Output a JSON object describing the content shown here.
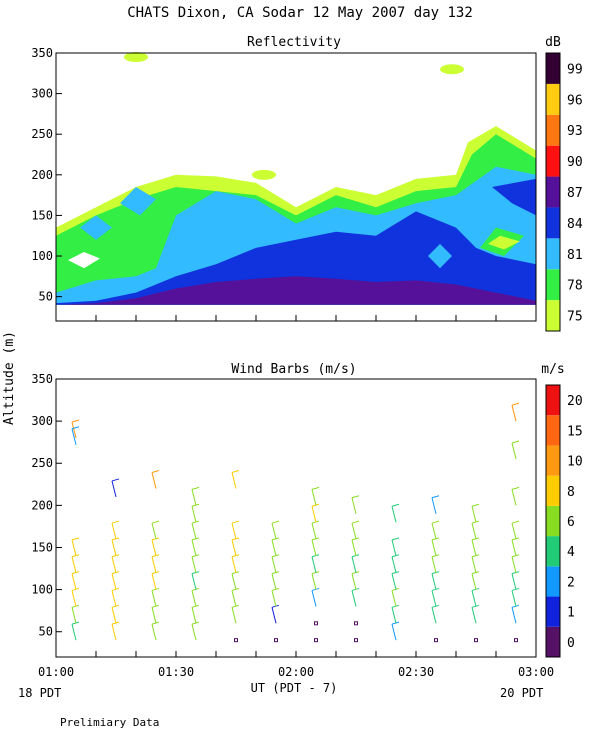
{
  "title": "CHATS Dixon, CA  Sodar  12 May 2007  day 132",
  "ylabel": "Altitude (m)",
  "footer": {
    "xlabel": "UT  (PDT - 7)",
    "left_note": "18 PDT",
    "right_note": "20 PDT",
    "preliminary": "Prelimiary Data"
  },
  "chart_data": [
    {
      "type": "heatmap",
      "title": "Reflectivity",
      "ylim": [
        20,
        350
      ],
      "yticks": [
        "50",
        "100",
        "150",
        "200",
        "250",
        "300",
        "350"
      ],
      "xlim": [
        "01:00",
        "03:00"
      ],
      "xticks": [],
      "colorbar": {
        "unit": "dB",
        "labels": [
          "75",
          "78",
          "81",
          "84",
          "87",
          "90",
          "93",
          "96",
          "99"
        ],
        "colors": [
          "#ccff33",
          "#33ee44",
          "#33bbff",
          "#1133dd",
          "#551199",
          "#ff1111",
          "#ff7711",
          "#ffcc11",
          "#330033"
        ]
      },
      "bands": [
        {
          "level": "75",
          "color": "#ccff33",
          "top": [
            [
              "01:00",
              135
            ],
            [
              "01:10",
              160
            ],
            [
              "01:20",
              185
            ],
            [
              "01:30",
              200
            ],
            [
              "01:40",
              198
            ],
            [
              "01:50",
              190
            ],
            [
              "02:00",
              160
            ],
            [
              "02:10",
              185
            ],
            [
              "02:20",
              175
            ],
            [
              "02:30",
              195
            ],
            [
              "02:40",
              200
            ],
            [
              "02:43",
              240
            ],
            [
              "02:50",
              260
            ],
            [
              "03:00",
              230
            ]
          ]
        },
        {
          "level": "78",
          "color": "#33ee44",
          "top": [
            [
              "01:00",
              125
            ],
            [
              "01:10",
              150
            ],
            [
              "01:20",
              170
            ],
            [
              "01:30",
              185
            ],
            [
              "01:40",
              180
            ],
            [
              "01:50",
              175
            ],
            [
              "02:00",
              150
            ],
            [
              "02:10",
              175
            ],
            [
              "02:20",
              160
            ],
            [
              "02:30",
              180
            ],
            [
              "02:40",
              185
            ],
            [
              "02:44",
              225
            ],
            [
              "02:50",
              250
            ],
            [
              "03:00",
              220
            ]
          ]
        },
        {
          "level": "81",
          "color": "#33bbff",
          "top": [
            [
              "01:00",
              55
            ],
            [
              "01:10",
              70
            ],
            [
              "01:20",
              75
            ],
            [
              "01:25",
              85
            ],
            [
              "01:30",
              150
            ],
            [
              "01:40",
              180
            ],
            [
              "01:50",
              170
            ],
            [
              "02:00",
              140
            ],
            [
              "02:10",
              160
            ],
            [
              "02:20",
              150
            ],
            [
              "02:30",
              165
            ],
            [
              "02:40",
              175
            ],
            [
              "02:50",
              210
            ],
            [
              "03:00",
              200
            ]
          ]
        },
        {
          "level": "84",
          "color": "#1133dd",
          "top": [
            [
              "01:00",
              42
            ],
            [
              "01:10",
              45
            ],
            [
              "01:20",
              55
            ],
            [
              "01:30",
              75
            ],
            [
              "01:40",
              90
            ],
            [
              "01:50",
              110
            ],
            [
              "02:00",
              120
            ],
            [
              "02:10",
              130
            ],
            [
              "02:20",
              125
            ],
            [
              "02:30",
              155
            ],
            [
              "02:40",
              135
            ],
            [
              "02:45",
              110
            ],
            [
              "02:50",
              100
            ],
            [
              "03:00",
              90
            ]
          ]
        },
        {
          "level": "87",
          "color": "#551199",
          "top": [
            [
              "01:00",
              40
            ],
            [
              "01:10",
              42
            ],
            [
              "01:20",
              48
            ],
            [
              "01:30",
              60
            ],
            [
              "01:40",
              68
            ],
            [
              "01:50",
              72
            ],
            [
              "02:00",
              75
            ],
            [
              "02:10",
              72
            ],
            [
              "02:20",
              68
            ],
            [
              "02:30",
              70
            ],
            [
              "02:40",
              65
            ],
            [
              "02:50",
              55
            ],
            [
              "03:00",
              45
            ]
          ]
        }
      ],
      "annotations": [
        {
          "label": "75",
          "at": [
            "01:20",
            345
          ]
        },
        {
          "label": "75",
          "at": [
            "02:39",
            330
          ]
        },
        {
          "label": "75",
          "at": [
            "01:52",
            200
          ]
        }
      ]
    },
    {
      "type": "scatter",
      "title": "Wind Barbs (m/s)",
      "ylim": [
        20,
        350
      ],
      "yticks": [
        "50",
        "100",
        "150",
        "200",
        "250",
        "300",
        "350"
      ],
      "xlim": [
        "01:00",
        "03:00"
      ],
      "xticks": [
        "01:00",
        "01:30",
        "02:00",
        "02:30",
        "03:00"
      ],
      "colorbar": {
        "unit": "m/s",
        "labels": [
          "0",
          "1",
          "2",
          "4",
          "6",
          "8",
          "10",
          "15",
          "20"
        ],
        "colors": [
          "#551166",
          "#1122dd",
          "#1199ff",
          "#22cc77",
          "#88dd22",
          "#ffcc00",
          "#ff9911",
          "#ff6611",
          "#ee1111"
        ]
      },
      "profiles": [
        {
          "time": "01:05",
          "points": [
            [
              40,
              "#22cc77"
            ],
            [
              60,
              "#88dd22"
            ],
            [
              80,
              "#ffcc00"
            ],
            [
              100,
              "#ffcc00"
            ],
            [
              120,
              "#ffcc00"
            ],
            [
              140,
              "#ffcc00"
            ],
            [
              280,
              "#ff9911"
            ],
            [
              272,
              "#1199ff"
            ]
          ]
        },
        {
          "time": "01:15",
          "points": [
            [
              40,
              "#ffcc00"
            ],
            [
              60,
              "#ffcc00"
            ],
            [
              80,
              "#ffcc00"
            ],
            [
              100,
              "#ffcc00"
            ],
            [
              120,
              "#ffcc00"
            ],
            [
              140,
              "#ffcc00"
            ],
            [
              160,
              "#ffcc00"
            ],
            [
              210,
              "#1122dd"
            ]
          ]
        },
        {
          "time": "01:25",
          "points": [
            [
              40,
              "#88dd22"
            ],
            [
              60,
              "#88dd22"
            ],
            [
              80,
              "#88dd22"
            ],
            [
              100,
              "#ffcc00"
            ],
            [
              120,
              "#ffcc00"
            ],
            [
              140,
              "#ffcc00"
            ],
            [
              160,
              "#88dd22"
            ],
            [
              220,
              "#ff9911"
            ]
          ]
        },
        {
          "time": "01:35",
          "points": [
            [
              40,
              "#88dd22"
            ],
            [
              60,
              "#88dd22"
            ],
            [
              80,
              "#88dd22"
            ],
            [
              100,
              "#22cc77"
            ],
            [
              120,
              "#88dd22"
            ],
            [
              140,
              "#88dd22"
            ],
            [
              160,
              "#88dd22"
            ],
            [
              180,
              "#88dd22"
            ],
            [
              200,
              "#88dd22"
            ]
          ]
        },
        {
          "time": "01:45",
          "points": [
            [
              40,
              "#551166"
            ],
            [
              60,
              "#88dd22"
            ],
            [
              80,
              "#88dd22"
            ],
            [
              100,
              "#88dd22"
            ],
            [
              120,
              "#ffcc00"
            ],
            [
              140,
              "#ffcc00"
            ],
            [
              160,
              "#ffcc00"
            ],
            [
              220,
              "#ffcc00"
            ]
          ]
        },
        {
          "time": "01:55",
          "points": [
            [
              40,
              "#551166"
            ],
            [
              60,
              "#1122dd"
            ],
            [
              80,
              "#88dd22"
            ],
            [
              100,
              "#88dd22"
            ],
            [
              120,
              "#88dd22"
            ],
            [
              140,
              "#88dd22"
            ],
            [
              160,
              "#88dd22"
            ]
          ]
        },
        {
          "time": "02:05",
          "points": [
            [
              40,
              "#551166"
            ],
            [
              60,
              "#551166"
            ],
            [
              80,
              "#1199ff"
            ],
            [
              100,
              "#88dd22"
            ],
            [
              120,
              "#22cc77"
            ],
            [
              140,
              "#88dd22"
            ],
            [
              160,
              "#88dd22"
            ],
            [
              180,
              "#ffcc00"
            ],
            [
              200,
              "#88dd22"
            ]
          ]
        },
        {
          "time": "02:15",
          "points": [
            [
              40,
              "#551166"
            ],
            [
              60,
              "#551166"
            ],
            [
              80,
              "#22cc77"
            ],
            [
              100,
              "#88dd22"
            ],
            [
              120,
              "#22cc77"
            ],
            [
              140,
              "#88dd22"
            ],
            [
              160,
              "#88dd22"
            ],
            [
              190,
              "#88dd22"
            ]
          ]
        },
        {
          "time": "02:25",
          "points": [
            [
              40,
              "#1199ff"
            ],
            [
              60,
              "#22cc77"
            ],
            [
              80,
              "#88dd22"
            ],
            [
              100,
              "#22cc77"
            ],
            [
              120,
              "#22cc77"
            ],
            [
              140,
              "#22cc77"
            ],
            [
              180,
              "#22cc77"
            ]
          ]
        },
        {
          "time": "02:35",
          "points": [
            [
              40,
              "#551166"
            ],
            [
              60,
              "#22cc77"
            ],
            [
              80,
              "#22cc77"
            ],
            [
              100,
              "#22cc77"
            ],
            [
              120,
              "#88dd22"
            ],
            [
              140,
              "#88dd22"
            ],
            [
              160,
              "#88dd22"
            ],
            [
              190,
              "#1199ff"
            ]
          ]
        },
        {
          "time": "02:45",
          "points": [
            [
              40,
              "#551166"
            ],
            [
              60,
              "#22cc77"
            ],
            [
              80,
              "#22cc77"
            ],
            [
              100,
              "#88dd22"
            ],
            [
              120,
              "#88dd22"
            ],
            [
              140,
              "#88dd22"
            ],
            [
              160,
              "#88dd22"
            ],
            [
              180,
              "#88dd22"
            ]
          ]
        },
        {
          "time": "02:55",
          "points": [
            [
              40,
              "#551166"
            ],
            [
              60,
              "#1199ff"
            ],
            [
              80,
              "#22cc77"
            ],
            [
              100,
              "#22cc77"
            ],
            [
              120,
              "#88dd22"
            ],
            [
              140,
              "#88dd22"
            ],
            [
              160,
              "#88dd22"
            ],
            [
              200,
              "#88dd22"
            ],
            [
              255,
              "#88dd22"
            ],
            [
              300,
              "#ff9911"
            ]
          ]
        }
      ]
    }
  ]
}
